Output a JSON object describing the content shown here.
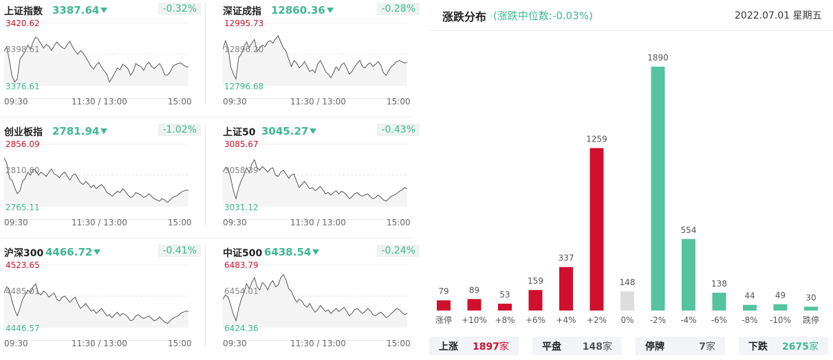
{
  "colors": {
    "up": "#d0102d",
    "down": "#3fb88e",
    "flat": "#dddddd",
    "down_bar": "#55c39e"
  },
  "indices": [
    {
      "name": "上证指数",
      "value": "3387.64",
      "change": "-0.32%",
      "high": "3420.62",
      "mid": "3398.61",
      "low": "3376.61",
      "time_open": "09:30",
      "time_mid": "11:30 / 13:00",
      "time_close": "15:00",
      "series": [
        0.55,
        0.62,
        0.4,
        0.15,
        0.05,
        0.1,
        0.42,
        0.48,
        0.55,
        0.65,
        0.58,
        0.7,
        0.78,
        0.74,
        0.67,
        0.6,
        0.66,
        0.63,
        0.56,
        0.64,
        0.7,
        0.65,
        0.61,
        0.59,
        0.66,
        0.71,
        0.62,
        0.55,
        0.5,
        0.56,
        0.52,
        0.45,
        0.38,
        0.3,
        0.26,
        0.33,
        0.37,
        0.29,
        0.23,
        0.18,
        0.05,
        0.12,
        0.2,
        0.28,
        0.25,
        0.34,
        0.31,
        0.27,
        0.16,
        0.22,
        0.35,
        0.32,
        0.3,
        0.24,
        0.33,
        0.37,
        0.3,
        0.27,
        0.31,
        0.35,
        0.28,
        0.17,
        0.16,
        0.21,
        0.3,
        0.33,
        0.35,
        0.36,
        0.33,
        0.3,
        0.29
      ]
    },
    {
      "name": "深证成指",
      "value": "12860.36",
      "change": "-0.28%",
      "high": "12995.73",
      "mid": "12896.20",
      "low": "12796.68",
      "time_open": "09:30",
      "time_mid": "11:30 / 13:00",
      "time_close": "15:00",
      "series": [
        0.58,
        0.72,
        0.6,
        0.3,
        0.18,
        0.1,
        0.45,
        0.5,
        0.62,
        0.7,
        0.6,
        0.68,
        0.74,
        0.55,
        0.6,
        0.65,
        0.62,
        0.7,
        0.72,
        0.68,
        0.75,
        0.8,
        0.7,
        0.6,
        0.55,
        0.42,
        0.3,
        0.4,
        0.36,
        0.28,
        0.32,
        0.38,
        0.3,
        0.22,
        0.25,
        0.2,
        0.34,
        0.4,
        0.32,
        0.22,
        0.18,
        0.12,
        0.2,
        0.3,
        0.24,
        0.33,
        0.36,
        0.28,
        0.18,
        0.22,
        0.3,
        0.35,
        0.4,
        0.3,
        0.28,
        0.34,
        0.36,
        0.3,
        0.34,
        0.38,
        0.32,
        0.2,
        0.16,
        0.24,
        0.3,
        0.34,
        0.38,
        0.4,
        0.38,
        0.36,
        0.37
      ]
    },
    {
      "name": "创业板指",
      "value": "2781.94",
      "change": "-1.02%",
      "high": "2856.09",
      "mid": "2810.60",
      "low": "2765.11",
      "time_open": "09:30",
      "time_mid": "11:30 / 13:00",
      "time_close": "15:00",
      "series": [
        0.78,
        0.7,
        0.45,
        0.42,
        0.3,
        0.2,
        0.25,
        0.4,
        0.45,
        0.55,
        0.5,
        0.6,
        0.58,
        0.5,
        0.55,
        0.52,
        0.48,
        0.55,
        0.6,
        0.52,
        0.5,
        0.46,
        0.52,
        0.55,
        0.48,
        0.42,
        0.5,
        0.52,
        0.45,
        0.38,
        0.35,
        0.4,
        0.36,
        0.3,
        0.34,
        0.28,
        0.32,
        0.35,
        0.3,
        0.22,
        0.2,
        0.16,
        0.2,
        0.24,
        0.22,
        0.28,
        0.24,
        0.18,
        0.14,
        0.16,
        0.22,
        0.2,
        0.18,
        0.14,
        0.16,
        0.2,
        0.16,
        0.12,
        0.1,
        0.08,
        0.12,
        0.1,
        0.06,
        0.1,
        0.14,
        0.16,
        0.18,
        0.22,
        0.24,
        0.26,
        0.25
      ]
    },
    {
      "name": "上证50",
      "value": "3045.27",
      "change": "-0.43%",
      "high": "3085.67",
      "mid": "3058.39",
      "low": "3031.12",
      "time_open": "09:30",
      "time_mid": "11:30 / 13:00",
      "time_close": "15:00",
      "series": [
        0.55,
        0.62,
        0.6,
        0.45,
        0.25,
        0.12,
        0.3,
        0.42,
        0.5,
        0.62,
        0.55,
        0.68,
        0.75,
        0.62,
        0.58,
        0.64,
        0.6,
        0.55,
        0.6,
        0.62,
        0.5,
        0.48,
        0.55,
        0.58,
        0.52,
        0.45,
        0.5,
        0.52,
        0.4,
        0.3,
        0.35,
        0.4,
        0.34,
        0.28,
        0.3,
        0.25,
        0.28,
        0.32,
        0.26,
        0.2,
        0.22,
        0.18,
        0.22,
        0.25,
        0.2,
        0.24,
        0.22,
        0.18,
        0.12,
        0.15,
        0.2,
        0.22,
        0.18,
        0.16,
        0.18,
        0.2,
        0.15,
        0.12,
        0.14,
        0.18,
        0.14,
        0.1,
        0.08,
        0.12,
        0.16,
        0.18,
        0.2,
        0.24,
        0.26,
        0.3,
        0.28
      ]
    },
    {
      "name": "沪深300",
      "value": "4466.72",
      "change": "-0.41%",
      "high": "4523.65",
      "mid": "4485.01",
      "low": "4446.57",
      "time_open": "09:30",
      "time_mid": "11:30 / 13:00",
      "time_close": "15:00",
      "series": [
        0.55,
        0.65,
        0.6,
        0.42,
        0.28,
        0.18,
        0.3,
        0.45,
        0.52,
        0.6,
        0.55,
        0.65,
        0.7,
        0.55,
        0.52,
        0.58,
        0.55,
        0.48,
        0.52,
        0.55,
        0.45,
        0.42,
        0.48,
        0.5,
        0.45,
        0.4,
        0.45,
        0.48,
        0.38,
        0.3,
        0.34,
        0.38,
        0.32,
        0.26,
        0.28,
        0.22,
        0.26,
        0.3,
        0.24,
        0.18,
        0.2,
        0.15,
        0.2,
        0.24,
        0.18,
        0.22,
        0.2,
        0.16,
        0.1,
        0.12,
        0.18,
        0.2,
        0.16,
        0.14,
        0.16,
        0.18,
        0.14,
        0.1,
        0.12,
        0.16,
        0.12,
        0.08,
        0.06,
        0.1,
        0.14,
        0.16,
        0.18,
        0.22,
        0.24,
        0.26,
        0.25
      ]
    },
    {
      "name": "中证500",
      "value": "6438.54",
      "change": "-0.24%",
      "high": "6483.79",
      "mid": "6454.01",
      "low": "6424.36",
      "time_open": "09:30",
      "time_mid": "11:30 / 13:00",
      "time_close": "15:00",
      "series": [
        0.45,
        0.52,
        0.48,
        0.35,
        0.2,
        0.1,
        0.3,
        0.45,
        0.55,
        0.7,
        0.62,
        0.72,
        0.8,
        0.65,
        0.6,
        0.72,
        0.68,
        0.6,
        0.7,
        0.75,
        0.65,
        0.68,
        0.8,
        0.85,
        0.76,
        0.62,
        0.58,
        0.48,
        0.4,
        0.45,
        0.42,
        0.35,
        0.32,
        0.38,
        0.3,
        0.24,
        0.28,
        0.35,
        0.3,
        0.25,
        0.28,
        0.22,
        0.26,
        0.3,
        0.25,
        0.28,
        0.32,
        0.26,
        0.18,
        0.22,
        0.28,
        0.3,
        0.26,
        0.22,
        0.25,
        0.3,
        0.26,
        0.2,
        0.18,
        0.22,
        0.24,
        0.2,
        0.15,
        0.18,
        0.22,
        0.26,
        0.3,
        0.28,
        0.24,
        0.2,
        0.22
      ]
    }
  ],
  "distribution": {
    "title": "涨跌分布",
    "subtitle": "(涨跌中位数:-0.03%)",
    "date": "2022.07.01 星期五"
  },
  "chart_data": {
    "type": "bar",
    "categories": [
      "涨停",
      "+10%",
      "+8%",
      "+6%",
      "+4%",
      "+2%",
      "0%",
      "-2%",
      "-4%",
      "-6%",
      "-8%",
      "-10%",
      "跌停"
    ],
    "values": [
      79,
      89,
      53,
      159,
      337,
      1259,
      148,
      1890,
      554,
      138,
      44,
      49,
      30
    ],
    "value_labels": [
      "79",
      "89",
      "53",
      "159",
      "337",
      "1259",
      "148",
      "1890",
      "554",
      "138",
      "44",
      "49",
      "30"
    ],
    "bar_colors": [
      "up",
      "up",
      "up",
      "up",
      "up",
      "up",
      "flat",
      "down_bar",
      "down_bar",
      "down_bar",
      "down_bar",
      "down_bar",
      "down_bar"
    ],
    "title": "",
    "xlabel": "",
    "ylabel": "",
    "ylim": [
      0,
      1890
    ]
  },
  "summary": [
    {
      "label": "上涨",
      "value": "1897",
      "unit": "家",
      "color": "up"
    },
    {
      "label": "平盘",
      "value": "148",
      "unit": "家",
      "color": "neutral"
    },
    {
      "label": "停牌",
      "value": "7",
      "unit": "家",
      "color": "neutral"
    },
    {
      "label": "下跌",
      "value": "2675",
      "unit": "家",
      "color": "down"
    }
  ]
}
